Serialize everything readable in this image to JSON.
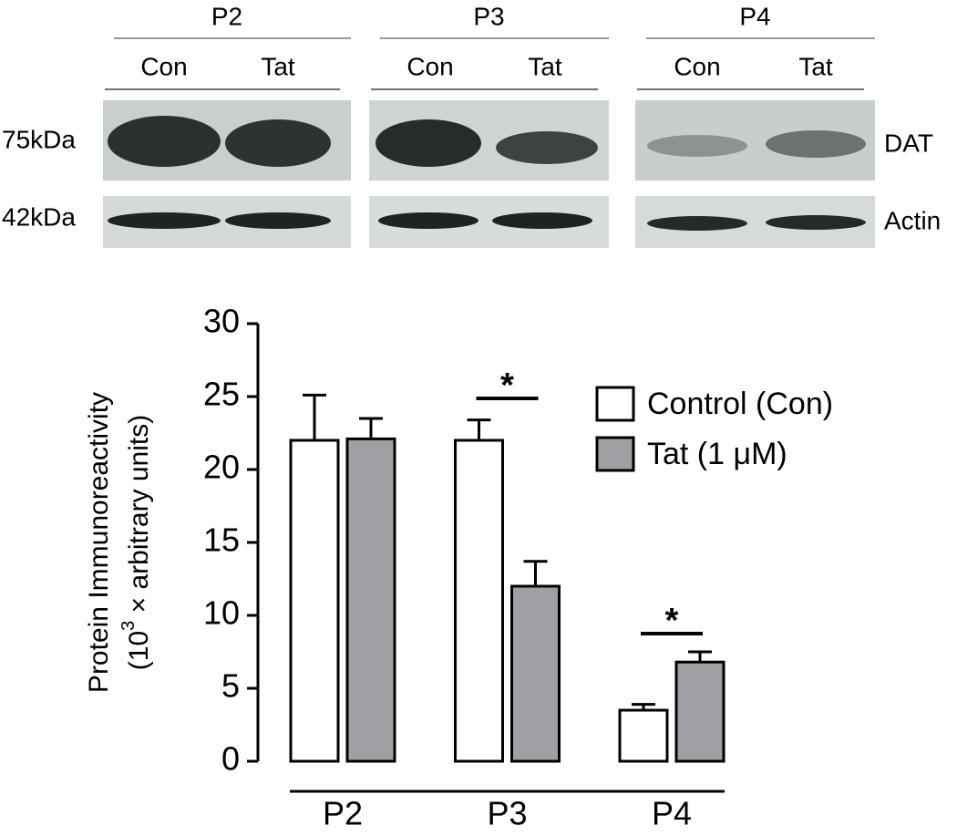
{
  "blot": {
    "lanes": [
      "P2",
      "P3",
      "P4"
    ],
    "conditions": [
      "Con",
      "Tat"
    ],
    "markers": [
      "75kDa",
      "42kDa"
    ],
    "proteins": [
      "DAT",
      "Actin"
    ]
  },
  "chart_data": {
    "type": "bar",
    "ylabel": [
      "Protein Immunoreactivity",
      "(10",
      "3",
      " × arbitrary units)"
    ],
    "categories": [
      "P2",
      "P3",
      "P4"
    ],
    "series": [
      {
        "name": "Control (Con)",
        "color": "#ffffff",
        "values": [
          22,
          22,
          3.5
        ],
        "errors": [
          3.1,
          1.4,
          0.4
        ]
      },
      {
        "name": "Tat (1 μM)",
        "color": "#a0a0a4",
        "values": [
          22.1,
          12,
          6.8
        ],
        "errors": [
          1.4,
          1.7,
          0.7
        ]
      }
    ],
    "annotations": [
      "*",
      "*"
    ],
    "ylim": [
      0,
      30
    ],
    "yticks": [
      0,
      5,
      10,
      15,
      20,
      25,
      30
    ],
    "grid": false,
    "legend": "upper right"
  }
}
